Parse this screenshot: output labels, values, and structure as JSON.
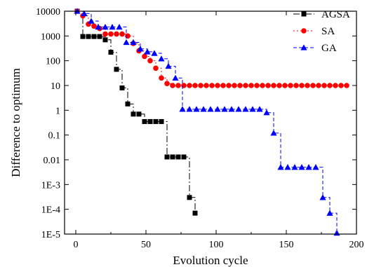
{
  "chart_data": {
    "type": "line",
    "title": "",
    "xlabel": "Evolution cycle",
    "ylabel": "Difference to optimum",
    "xlim": [
      -8,
      200
    ],
    "ylim": [
      1e-05,
      10000
    ],
    "yscale": "log",
    "x_ticks": [
      0,
      50,
      100,
      150,
      200
    ],
    "x_tick_labels": [
      "0",
      "50",
      "100",
      "150",
      "200"
    ],
    "y_ticks": [
      10000,
      1000,
      100,
      10,
      1,
      0.1,
      0.01,
      0.001,
      0.0001,
      1e-05
    ],
    "y_tick_labels": [
      "10000",
      "1000",
      "100",
      "10",
      "1",
      "0.1",
      "0.01",
      "1E-3",
      "1E-4",
      "1E-5"
    ],
    "grid": false,
    "legend_position": "top-right",
    "series": [
      {
        "name": "AGSA",
        "color": "#000000",
        "marker": "square",
        "style": "dash-dot",
        "x": [
          1,
          5,
          9,
          13,
          17,
          21,
          25,
          29,
          33,
          37,
          41,
          45,
          49,
          53,
          57,
          61,
          65,
          69,
          73,
          77,
          81,
          85
        ],
        "y": [
          10000,
          950,
          950,
          950,
          950,
          700,
          220,
          45,
          8,
          1.8,
          0.7,
          0.7,
          0.35,
          0.35,
          0.35,
          0.35,
          0.013,
          0.013,
          0.013,
          0.013,
          0.0003,
          7e-05
        ]
      },
      {
        "name": "SA",
        "color": "#ff0000",
        "marker": "circle",
        "style": "dotted",
        "x": [
          1,
          5,
          9,
          13,
          17,
          21,
          25,
          29,
          33,
          37,
          41,
          45,
          49,
          53,
          57,
          61,
          65,
          69,
          73,
          77,
          81,
          85,
          89,
          93,
          97,
          101,
          105,
          109,
          113,
          117,
          121,
          125,
          129,
          133,
          137,
          141,
          145,
          149,
          153,
          157,
          161,
          165,
          169,
          173,
          177,
          181,
          185,
          189,
          193
        ],
        "y": [
          10000,
          6500,
          3000,
          2500,
          2000,
          1200,
          1200,
          1200,
          1200,
          1000,
          500,
          250,
          150,
          100,
          50,
          20,
          12,
          10,
          10,
          10,
          10,
          10,
          10,
          10,
          10,
          10,
          10,
          10,
          10,
          10,
          10,
          10,
          10,
          10,
          10,
          10,
          10,
          10,
          10,
          10,
          10,
          10,
          10,
          10,
          10,
          10,
          10,
          10,
          10
        ]
      },
      {
        "name": "GA",
        "color": "#0000ff",
        "marker": "triangle",
        "style": "dashed",
        "x": [
          1,
          6,
          11,
          16,
          21,
          26,
          31,
          36,
          41,
          46,
          51,
          56,
          61,
          66,
          71,
          76,
          81,
          86,
          91,
          96,
          101,
          106,
          111,
          116,
          121,
          126,
          131,
          136,
          141,
          146,
          151,
          156,
          161,
          166,
          171,
          176,
          181,
          186
        ],
        "y": [
          10000,
          8000,
          4000,
          2300,
          2300,
          2300,
          2300,
          550,
          550,
          300,
          230,
          200,
          120,
          60,
          20,
          1.1,
          1.1,
          1.1,
          1.1,
          1.1,
          1.1,
          1.1,
          1.1,
          1.1,
          1.1,
          1.1,
          1.1,
          0.8,
          0.12,
          0.005,
          0.005,
          0.005,
          0.005,
          0.005,
          0.005,
          0.0003,
          7e-05,
          1.1e-05
        ]
      }
    ]
  }
}
